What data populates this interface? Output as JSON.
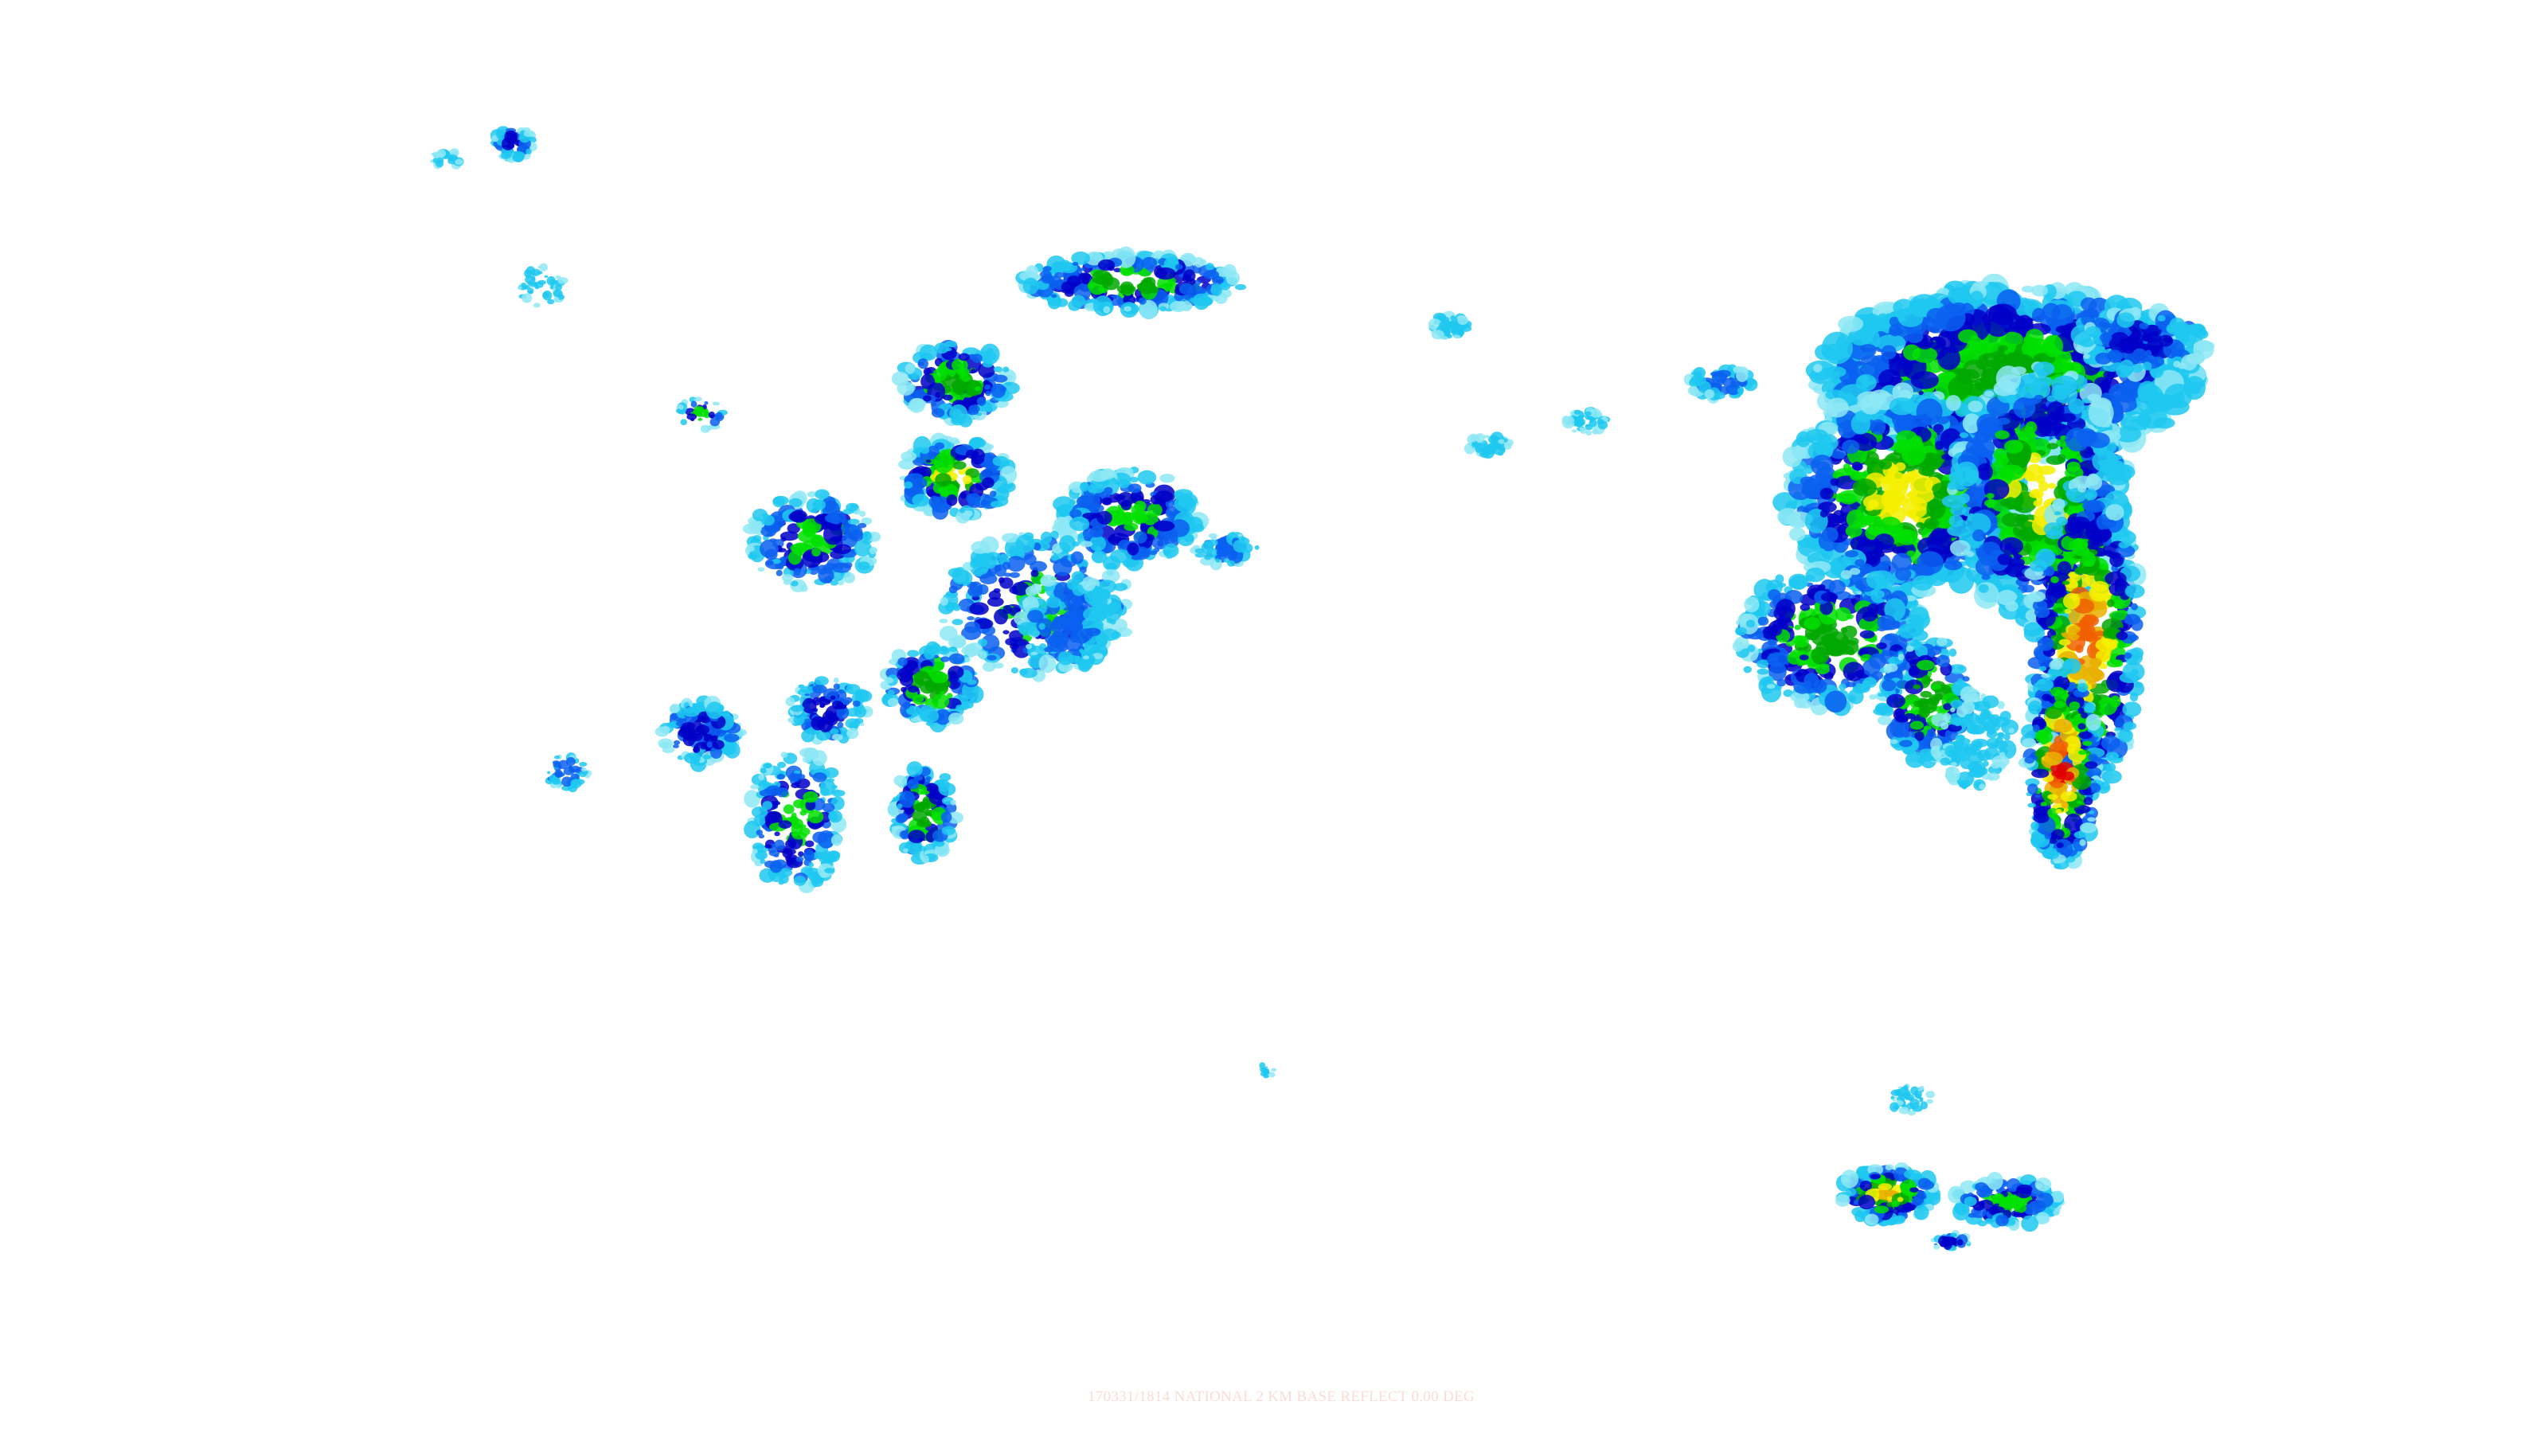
{
  "map": {
    "caption": "170331/1814 NATIONAL 2 KM BASE REFLECT 0.00 DEG",
    "reflectivity_palette": [
      "#8ee8f4",
      "#1ec8f0",
      "#0a60f0",
      "#0000c8",
      "#00e000",
      "#00a800",
      "#f4f000",
      "#e8b000",
      "#f06000",
      "#e00000"
    ],
    "caption_color": "#f9ddd5",
    "background_color": "#ffffff"
  }
}
